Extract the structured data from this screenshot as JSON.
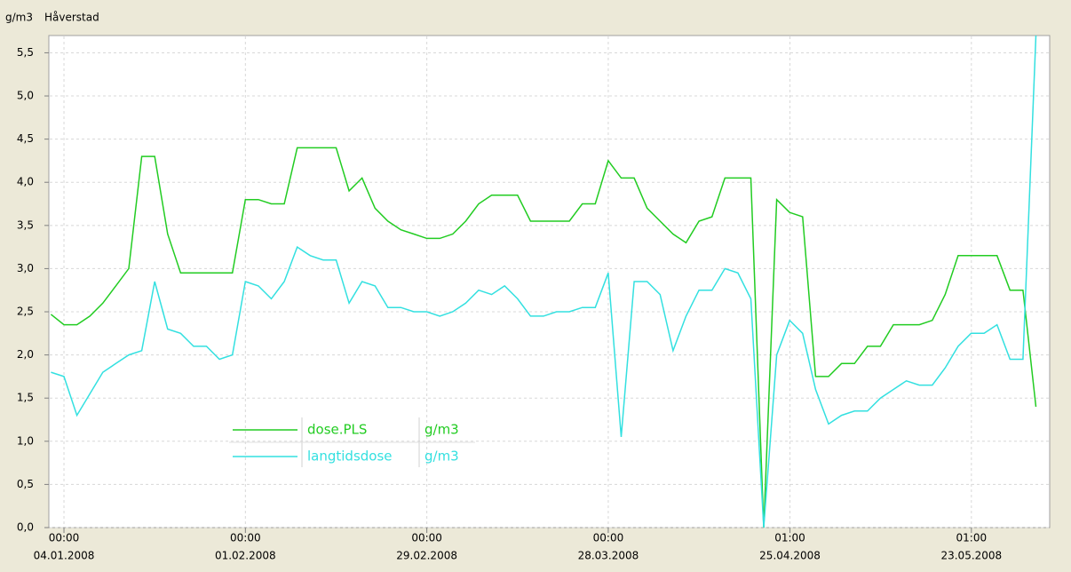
{
  "chart_data": {
    "type": "line",
    "title": "Håverstad",
    "ylabel": "g/m3",
    "x": [
      "2008-01-02",
      "2008-01-04",
      "2008-01-06",
      "2008-01-08",
      "2008-01-10",
      "2008-01-12",
      "2008-01-14",
      "2008-01-16",
      "2008-01-18",
      "2008-01-20",
      "2008-01-22",
      "2008-01-24",
      "2008-01-26",
      "2008-01-28",
      "2008-01-30",
      "2008-02-01",
      "2008-02-03",
      "2008-02-05",
      "2008-02-07",
      "2008-02-09",
      "2008-02-11",
      "2008-02-13",
      "2008-02-15",
      "2008-02-17",
      "2008-02-19",
      "2008-02-21",
      "2008-02-23",
      "2008-02-25",
      "2008-02-27",
      "2008-02-29",
      "2008-03-02",
      "2008-03-04",
      "2008-03-06",
      "2008-03-08",
      "2008-03-10",
      "2008-03-12",
      "2008-03-14",
      "2008-03-16",
      "2008-03-18",
      "2008-03-20",
      "2008-03-22",
      "2008-03-24",
      "2008-03-26",
      "2008-03-28",
      "2008-03-30",
      "2008-04-01",
      "2008-04-03",
      "2008-04-05",
      "2008-04-07",
      "2008-04-09",
      "2008-04-11",
      "2008-04-13",
      "2008-04-15",
      "2008-04-17",
      "2008-04-19",
      "2008-04-21",
      "2008-04-23",
      "2008-04-25",
      "2008-04-27",
      "2008-04-29",
      "2008-05-01",
      "2008-05-03",
      "2008-05-05",
      "2008-05-07",
      "2008-05-09",
      "2008-05-11",
      "2008-05-13",
      "2008-05-15",
      "2008-05-17",
      "2008-05-19",
      "2008-05-21",
      "2008-05-23",
      "2008-05-25",
      "2008-05-27",
      "2008-05-29",
      "2008-05-31",
      "2008-06-02"
    ],
    "series": [
      {
        "name": "dose.PLS",
        "unit": "g/m3",
        "color": "#22cc22",
        "values": [
          2.47,
          2.35,
          2.35,
          2.45,
          2.6,
          2.8,
          3.0,
          4.3,
          4.3,
          3.4,
          2.95,
          2.95,
          2.95,
          2.95,
          2.95,
          3.8,
          3.8,
          3.75,
          3.75,
          4.4,
          4.4,
          4.4,
          4.4,
          3.9,
          4.05,
          3.7,
          3.55,
          3.45,
          3.4,
          3.35,
          3.35,
          3.4,
          3.55,
          3.75,
          3.85,
          3.85,
          3.85,
          3.55,
          3.55,
          3.55,
          3.55,
          3.75,
          3.75,
          4.25,
          4.05,
          4.05,
          3.7,
          3.55,
          3.4,
          3.3,
          3.55,
          3.6,
          4.05,
          4.05,
          4.05,
          0.0,
          3.8,
          3.65,
          3.6,
          1.75,
          1.75,
          1.9,
          1.9,
          2.1,
          2.1,
          2.35,
          2.35,
          2.35,
          2.4,
          2.7,
          3.15,
          3.15,
          3.15,
          3.15,
          2.75,
          2.75,
          1.4
        ]
      },
      {
        "name": "langtidsdose",
        "unit": "g/m3",
        "color": "#33e0e0",
        "values": [
          1.8,
          1.75,
          1.3,
          1.55,
          1.8,
          1.9,
          2.0,
          2.05,
          2.85,
          2.3,
          2.25,
          2.1,
          2.1,
          1.95,
          2.0,
          2.85,
          2.8,
          2.65,
          2.85,
          3.25,
          3.15,
          3.1,
          3.1,
          2.6,
          2.85,
          2.8,
          2.55,
          2.55,
          2.5,
          2.5,
          2.45,
          2.5,
          2.6,
          2.75,
          2.7,
          2.8,
          2.65,
          2.45,
          2.45,
          2.5,
          2.5,
          2.55,
          2.55,
          2.95,
          1.05,
          2.85,
          2.85,
          2.7,
          2.05,
          2.45,
          2.75,
          2.75,
          3.0,
          2.95,
          2.65,
          0.0,
          2.0,
          2.4,
          2.25,
          1.6,
          1.2,
          1.3,
          1.35,
          1.35,
          1.5,
          1.6,
          1.7,
          1.65,
          1.65,
          1.85,
          2.1,
          2.25,
          2.25,
          2.35,
          1.95,
          1.95,
          5.7
        ]
      }
    ],
    "xlim": [
      "2008-01-01T16:00",
      "2008-06-04T03:00"
    ],
    "xticks": [
      {
        "value": "2008-01-04T00:00",
        "label": "00:00",
        "date": "04.01.2008"
      },
      {
        "value": "2008-02-01T00:00",
        "label": "00:00",
        "date": "01.02.2008"
      },
      {
        "value": "2008-02-29T00:00",
        "label": "00:00",
        "date": "29.02.2008"
      },
      {
        "value": "2008-03-28T00:00",
        "label": "00:00",
        "date": "28.03.2008"
      },
      {
        "value": "2008-04-25T01:00",
        "label": "01:00",
        "date": "25.04.2008"
      },
      {
        "value": "2008-05-23T01:00",
        "label": "01:00",
        "date": "23.05.2008"
      }
    ],
    "ylim": [
      0,
      5.7
    ],
    "yticks": [
      {
        "value": 0,
        "label": "0,0"
      },
      {
        "value": 0.5,
        "label": "0,5"
      },
      {
        "value": 1,
        "label": "1,0"
      },
      {
        "value": 1.5,
        "label": "1,5"
      },
      {
        "value": 2,
        "label": "2,0"
      },
      {
        "value": 2.5,
        "label": "2,5"
      },
      {
        "value": 3,
        "label": "3,0"
      },
      {
        "value": 3.5,
        "label": "3,5"
      },
      {
        "value": 4,
        "label": "4,0"
      },
      {
        "value": 4.5,
        "label": "4,5"
      },
      {
        "value": 5,
        "label": "5,0"
      },
      {
        "value": 5.5,
        "label": "5,5"
      }
    ],
    "grid": true
  }
}
